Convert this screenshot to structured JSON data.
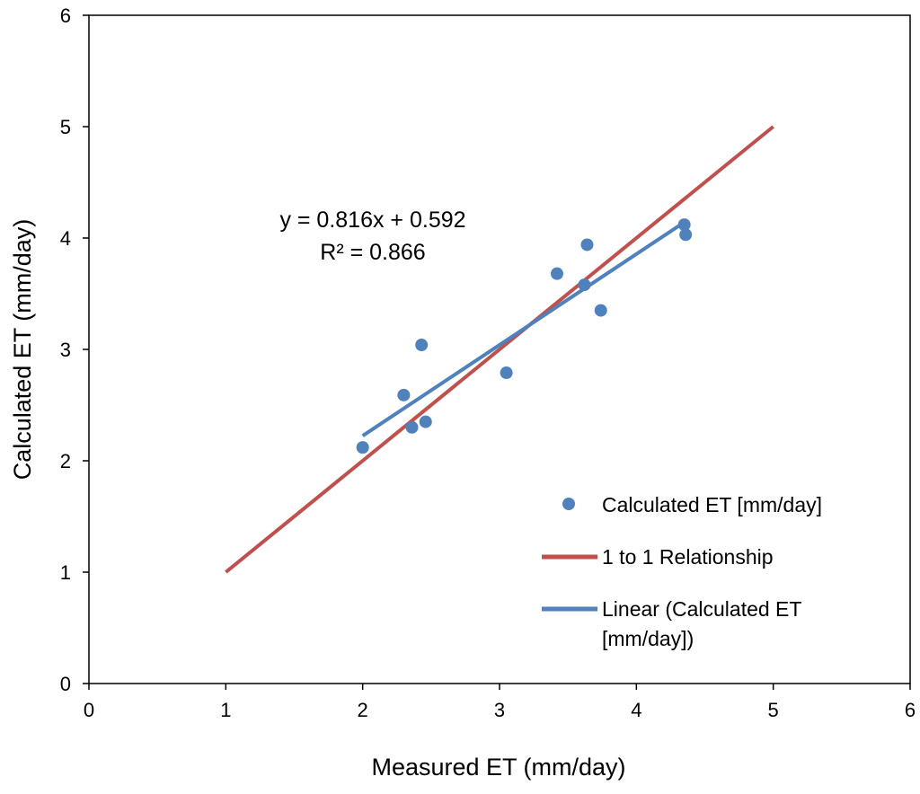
{
  "chart_data": {
    "type": "scatter",
    "title": "",
    "xlabel": "Measured ET (mm/day)",
    "ylabel": "Calculated ET (mm/day)",
    "xlim": [
      0,
      6
    ],
    "ylim": [
      0,
      6
    ],
    "xticks": [
      "0",
      "1",
      "2",
      "3",
      "4",
      "5",
      "6"
    ],
    "yticks": [
      "0",
      "1",
      "2",
      "3",
      "4",
      "5",
      "6"
    ],
    "grid": false,
    "legend_position": "lower-right",
    "series": [
      {
        "name": "Calculated ET [mm/day]",
        "kind": "scatter",
        "color": "#4F81BD",
        "x": [
          2.0,
          2.3,
          2.36,
          2.43,
          2.46,
          3.05,
          3.42,
          3.62,
          3.64,
          3.74,
          4.35,
          4.36
        ],
        "y": [
          2.12,
          2.59,
          2.3,
          3.04,
          2.35,
          2.79,
          3.68,
          3.58,
          3.94,
          3.35,
          4.12,
          4.03
        ]
      },
      {
        "name": "1 to 1 Relationship",
        "kind": "line",
        "color": "#C0504D",
        "x": [
          1,
          5
        ],
        "y": [
          1,
          5
        ]
      },
      {
        "name": "Linear (Calculated ET [mm/day])",
        "legend_lines": [
          "Linear (Calculated ET",
          "[mm/day])"
        ],
        "kind": "trendline",
        "color": "#4F81BD",
        "slope": 0.816,
        "intercept": 0.592,
        "x_range": [
          2.0,
          4.36
        ]
      }
    ],
    "annotations": {
      "equation": "y = 0.816x + 0.592",
      "r_squared": "R² = 0.866"
    }
  }
}
